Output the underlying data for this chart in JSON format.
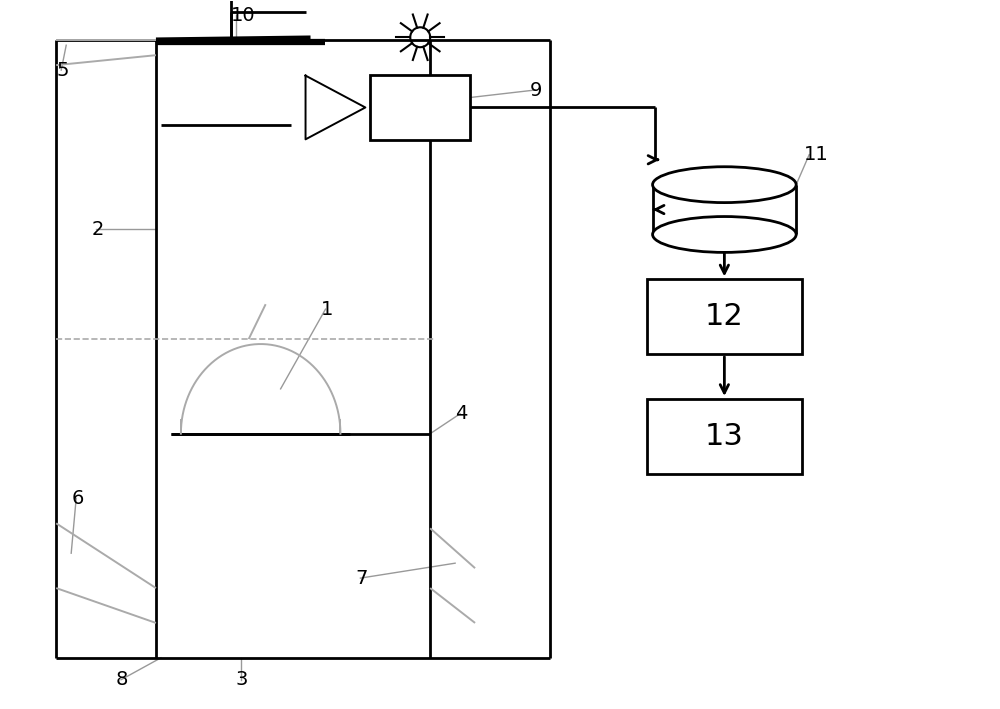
{
  "bg_color": "#ffffff",
  "line_color": "#000000",
  "gray_color": "#aaaaaa",
  "figsize": [
    10.0,
    7.09
  ],
  "dpi": 100
}
